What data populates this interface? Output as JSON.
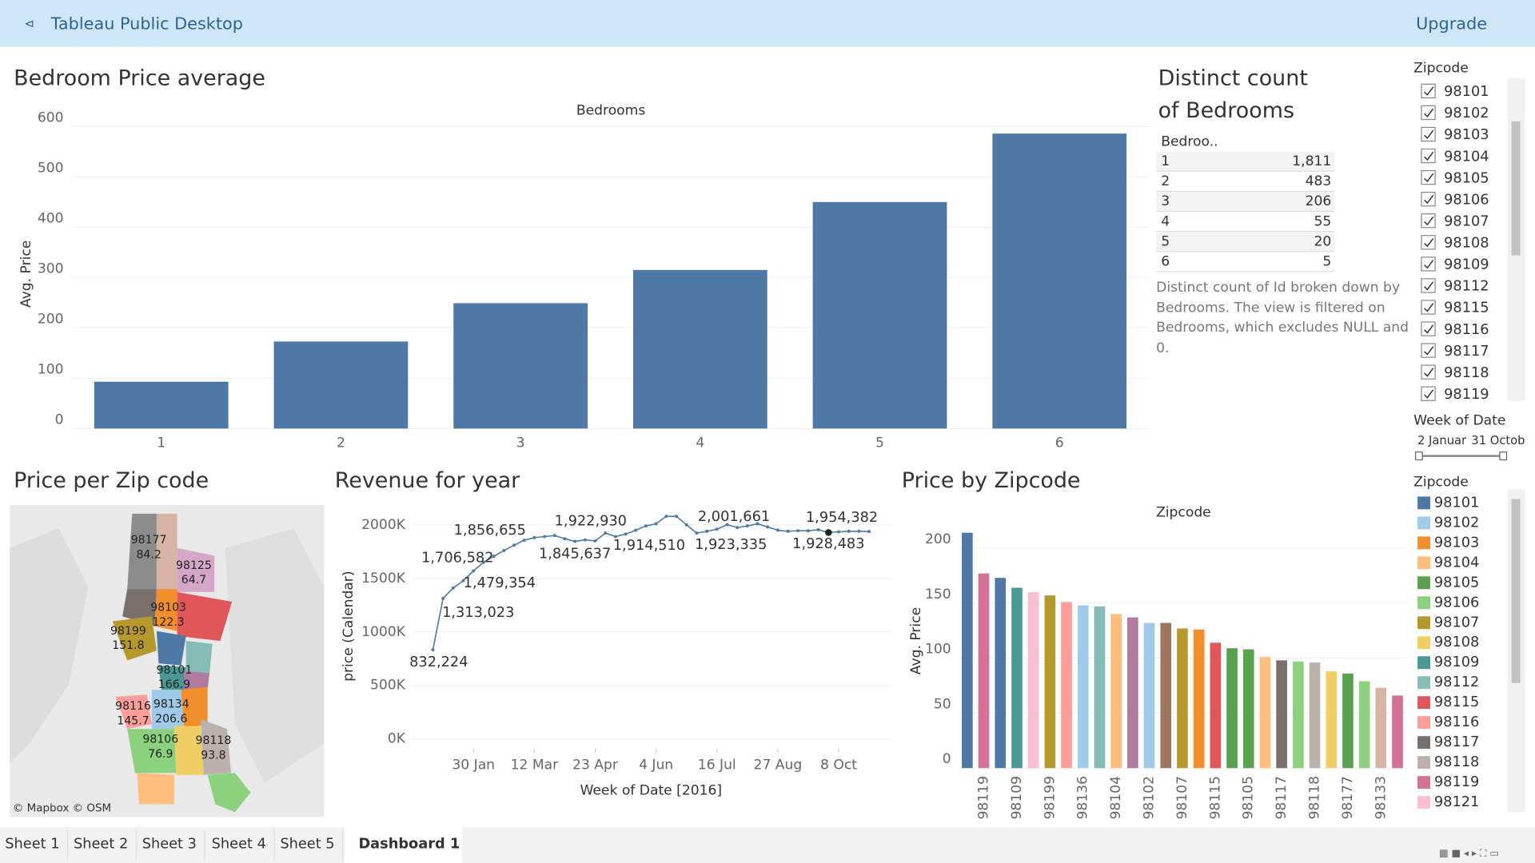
{
  "app": {
    "title": "Tableau Public Desktop",
    "upgrade": "Upgrade"
  },
  "bedroom_chart": {
    "type": "bar",
    "title": "Bedroom Price average",
    "header": "Bedrooms",
    "y_label": "Avg. Price",
    "categories": [
      "1",
      "2",
      "3",
      "4",
      "5",
      "6"
    ],
    "values": [
      93,
      173,
      249,
      315,
      450,
      586
    ],
    "color": "#4e79a7",
    "ylim": [
      0,
      620
    ],
    "yticks": [
      0,
      100,
      200,
      300,
      400,
      500,
      600
    ],
    "grid": true
  },
  "distinct_count": {
    "title_lines": [
      "Distinct count",
      "of Bedrooms"
    ],
    "header": "Bedroo..",
    "rows": [
      [
        "1",
        "1,811"
      ],
      [
        "2",
        "483"
      ],
      [
        "3",
        "206"
      ],
      [
        "4",
        "55"
      ],
      [
        "5",
        "20"
      ],
      [
        "6",
        "5"
      ]
    ],
    "caption": "Distinct count of Id broken down by Bedrooms. The view is filtered on Bedrooms, which excludes NULL and 0."
  },
  "zip_filter": {
    "title": "Zipcode",
    "options": [
      "98101",
      "98102",
      "98103",
      "98104",
      "98105",
      "98106",
      "98107",
      "98108",
      "98109",
      "98112",
      "98115",
      "98116",
      "98117",
      "98118",
      "98119"
    ]
  },
  "date_filter": {
    "title": "Week of Date",
    "start": "2 Januar",
    "end": "31 Octob"
  },
  "zip_map": {
    "title": "Price per Zip code",
    "attribution": "© Mapbox © OSM",
    "regions": [
      {
        "zip": "98177",
        "value": "84.2"
      },
      {
        "zip": "98125",
        "value": "64.7"
      },
      {
        "zip": "98103",
        "value": "122.3"
      },
      {
        "zip": "98199",
        "value": "151.8"
      },
      {
        "zip": "98101",
        "value": "166.9"
      },
      {
        "zip": "98116",
        "value": "145.7"
      },
      {
        "zip": "98134",
        "value": "206.6"
      },
      {
        "zip": "98106",
        "value": "76.9"
      },
      {
        "zip": "98118",
        "value": "93.8"
      }
    ]
  },
  "revenue_chart": {
    "type": "line",
    "title": "Revenue for year",
    "y_label": "price (Calendar)",
    "x_label": "Week of Date [2016]",
    "color": "#4e79a7",
    "x": [
      "2016-01-02",
      "2016-01-09",
      "2016-01-16",
      "2016-01-23",
      "2016-01-30",
      "2016-02-06",
      "2016-02-13",
      "2016-02-20",
      "2016-02-27",
      "2016-03-05",
      "2016-03-12",
      "2016-03-19",
      "2016-03-26",
      "2016-04-02",
      "2016-04-09",
      "2016-04-16",
      "2016-04-23",
      "2016-04-30",
      "2016-05-07",
      "2016-05-14",
      "2016-05-21",
      "2016-05-28",
      "2016-06-04",
      "2016-06-11",
      "2016-06-18",
      "2016-06-25",
      "2016-07-02",
      "2016-07-09",
      "2016-07-16",
      "2016-07-23",
      "2016-07-30",
      "2016-08-06",
      "2016-08-13",
      "2016-08-20",
      "2016-08-27",
      "2016-09-03",
      "2016-09-10",
      "2016-09-17",
      "2016-09-24",
      "2016-10-01",
      "2016-10-08",
      "2016-10-15",
      "2016-10-22",
      "2016-10-29"
    ],
    "values": [
      832224,
      1313023,
      1410000,
      1479354,
      1570000,
      1650000,
      1706582,
      1760000,
      1810000,
      1856655,
      1880000,
      1890000,
      1900000,
      1870000,
      1845637,
      1860000,
      1850000,
      1922930,
      1890000,
      1914510,
      1950000,
      1990000,
      2010000,
      2080000,
      2080000,
      2000000,
      1923335,
      1940000,
      1960000,
      2001661,
      1975000,
      1990000,
      2010000,
      1980000,
      1950000,
      1940000,
      1945000,
      1945000,
      1954382,
      1928483,
      1935000,
      1940000,
      1940000,
      1938000
    ],
    "value_labels": [
      "832,224",
      "1,313,023",
      null,
      "1,479,354",
      null,
      null,
      "1,706,582",
      null,
      null,
      "1,856,655",
      null,
      null,
      null,
      null,
      "1,845,637",
      null,
      null,
      "1,922,930",
      null,
      "1,914,510",
      null,
      null,
      null,
      null,
      null,
      null,
      "1,923,335",
      null,
      null,
      "2,001,661",
      null,
      null,
      null,
      null,
      null,
      null,
      null,
      null,
      "1,954,382",
      "1,928,483",
      null,
      null,
      null,
      null
    ],
    "xlim": [
      "2015-12-18",
      "2016-11-13"
    ],
    "xticks": [
      {
        "value": "2016-01-30",
        "label": "30 Jan"
      },
      {
        "value": "2016-03-12",
        "label": "12 Mar"
      },
      {
        "value": "2016-04-23",
        "label": "23 Apr"
      },
      {
        "value": "2016-06-04",
        "label": "4 Jun"
      },
      {
        "value": "2016-07-16",
        "label": "16 Jul"
      },
      {
        "value": "2016-08-27",
        "label": "27 Aug"
      },
      {
        "value": "2016-10-08",
        "label": "8 Oct"
      }
    ],
    "ylim": [
      -90000,
      2150000
    ],
    "yticks": [
      {
        "value": 0,
        "label": "0K"
      },
      {
        "value": 500000,
        "label": "500K"
      },
      {
        "value": 1000000,
        "label": "1000K"
      },
      {
        "value": 1500000,
        "label": "1500K"
      },
      {
        "value": 2000000,
        "label": "2000K"
      }
    ],
    "grid": true
  },
  "zip_chart": {
    "type": "bar",
    "title": "Price by Zipcode",
    "header": "Zipcode",
    "y_label": "Avg. Price",
    "categories": [
      null,
      "98119",
      null,
      "98109",
      null,
      "98199",
      null,
      "98136",
      null,
      "98104",
      null,
      "98102",
      null,
      "98107",
      null,
      "98115",
      null,
      "98105",
      null,
      "98117",
      null,
      "98118",
      null,
      "98177",
      null,
      "98133",
      null
    ],
    "values": [
      214,
      177,
      173,
      164,
      160,
      157,
      151,
      148,
      147,
      140,
      137,
      132,
      132,
      127,
      126,
      114,
      109,
      108,
      101,
      98,
      97,
      96,
      88,
      86,
      79,
      73,
      66
    ],
    "colors": [
      "#4e79a7",
      "#d37295",
      "#4e79a7",
      "#499894",
      "#fabfd2",
      "#b6992d",
      "#ff9d9a",
      "#a0cbe8",
      "#86bcb6",
      "#ffbe7d",
      "#b07aa1",
      "#a0cbe8",
      "#9d7660",
      "#b6992d",
      "#f28e2b",
      "#e15759",
      "#59a14f",
      "#59a14f",
      "#ffbe7d",
      "#79706e",
      "#8cd17d",
      "#bab0ac",
      "#f1ce63",
      "#59a14f",
      "#8cd17d",
      "#d7b5a6",
      "#d37295"
    ],
    "ylim": [
      0,
      218
    ],
    "yticks": [
      0,
      50,
      100,
      150,
      200
    ],
    "grid": true
  },
  "zip_legend": {
    "title": "Zipcode",
    "items": [
      {
        "name": "98101",
        "color": "#4e79a7"
      },
      {
        "name": "98102",
        "color": "#a0cbe8"
      },
      {
        "name": "98103",
        "color": "#f28e2b"
      },
      {
        "name": "98104",
        "color": "#ffbe7d"
      },
      {
        "name": "98105",
        "color": "#59a14f"
      },
      {
        "name": "98106",
        "color": "#8cd17d"
      },
      {
        "name": "98107",
        "color": "#b6992d"
      },
      {
        "name": "98108",
        "color": "#f1ce63"
      },
      {
        "name": "98109",
        "color": "#499894"
      },
      {
        "name": "98112",
        "color": "#86bcb6"
      },
      {
        "name": "98115",
        "color": "#e15759"
      },
      {
        "name": "98116",
        "color": "#ff9d9a"
      },
      {
        "name": "98117",
        "color": "#79706e"
      },
      {
        "name": "98118",
        "color": "#bab0ac"
      },
      {
        "name": "98119",
        "color": "#d37295"
      },
      {
        "name": "98121",
        "color": "#fabfd2"
      }
    ]
  },
  "tabs": [
    "Sheet 1",
    "Sheet 2",
    "Sheet 3",
    "Sheet 4",
    "Sheet 5",
    "Dashboard 1"
  ]
}
